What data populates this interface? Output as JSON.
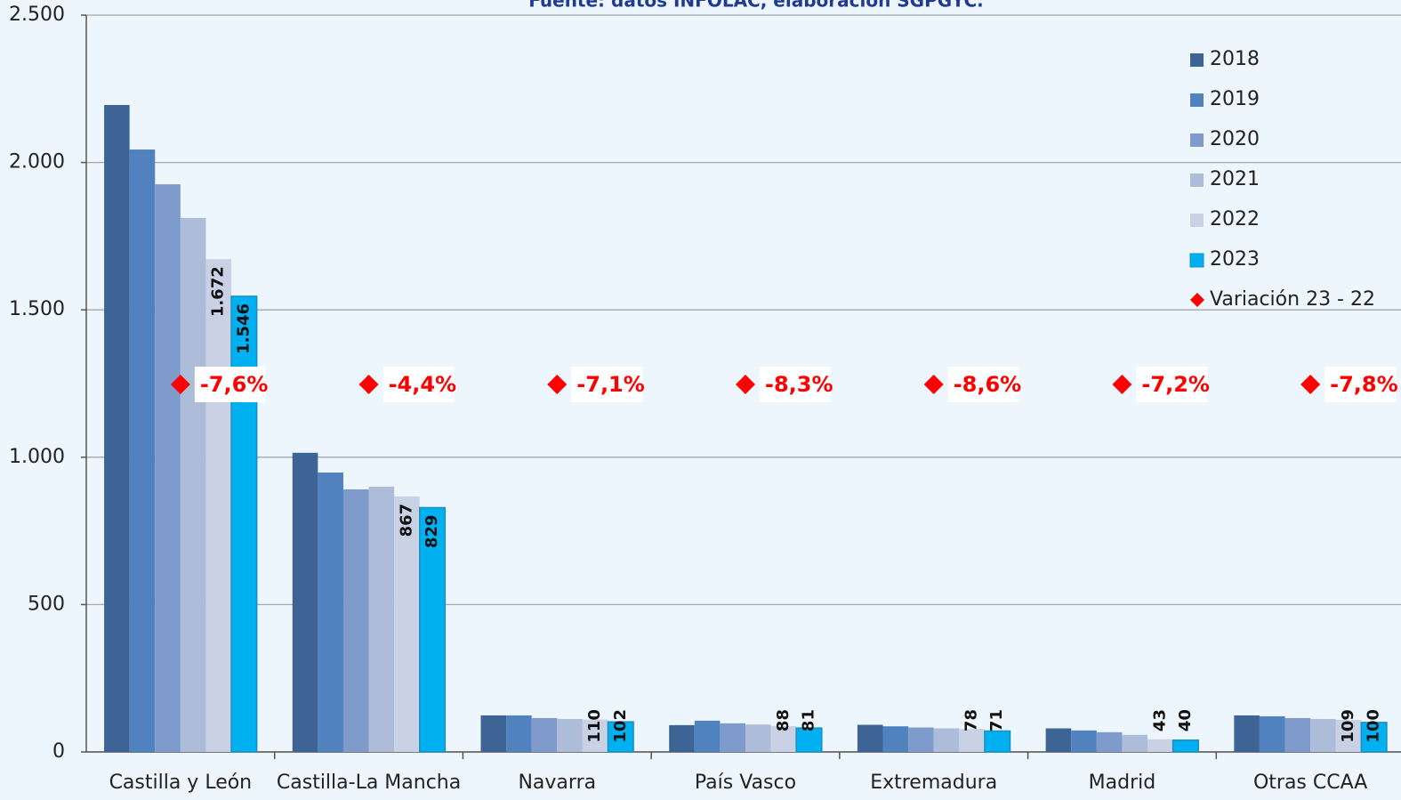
{
  "chart_data": {
    "type": "bar",
    "subtitle": "Fuente: datos INFOLAC, elaboración SGPGYC.",
    "categories": [
      "Castilla y León",
      "Castilla-La Mancha",
      "Navarra",
      "País Vasco",
      "Extremadura",
      "Madrid",
      "Otras CCAA"
    ],
    "series": [
      {
        "name": "2018",
        "color": "#3e6496",
        "values": [
          2195,
          1015,
          124,
          91,
          92,
          80,
          124
        ]
      },
      {
        "name": "2019",
        "color": "#5182c0",
        "values": [
          2044,
          948,
          124,
          106,
          87,
          73,
          121
        ]
      },
      {
        "name": "2020",
        "color": "#7e9bcb",
        "values": [
          1926,
          891,
          115,
          97,
          83,
          67,
          115
        ]
      },
      {
        "name": "2021",
        "color": "#adbcd9",
        "values": [
          1812,
          900,
          112,
          93,
          80,
          58,
          112
        ]
      },
      {
        "name": "2022",
        "color": "#c9d1e5",
        "values": [
          1672,
          867,
          110,
          88,
          78,
          43,
          109
        ],
        "value_labels": [
          "1.672",
          "867",
          "110",
          "88",
          "78",
          "43",
          "109"
        ]
      },
      {
        "name": "2023",
        "color": "#00b0f0",
        "values": [
          1546,
          829,
          102,
          81,
          71,
          40,
          100
        ],
        "value_labels": [
          "1.546",
          "829",
          "102",
          "81",
          "71",
          "40",
          "100"
        ]
      },
      {
        "name": "Variación 23 - 22",
        "type": "scatter",
        "marker": "diamond",
        "color": "#ff0000",
        "values": [
          -7.6,
          -4.4,
          -7.1,
          -8.3,
          -8.6,
          -7.2,
          -7.8
        ],
        "value_labels": [
          "-7,6%",
          "-4,4%",
          "-7,1%",
          "-8,3%",
          "-8,6%",
          "-7,2%",
          "-7,8%"
        ]
      }
    ],
    "ylim": [
      0,
      2500
    ],
    "yticks": [
      0,
      500,
      {
        "value": 1000,
        "label": "1.000"
      },
      {
        "value": 1500,
        "label": "1.500"
      },
      {
        "value": 2000,
        "label": "2.000"
      },
      {
        "value": 2500,
        "label": "2.500"
      }
    ],
    "grid": true,
    "legend": "right"
  }
}
